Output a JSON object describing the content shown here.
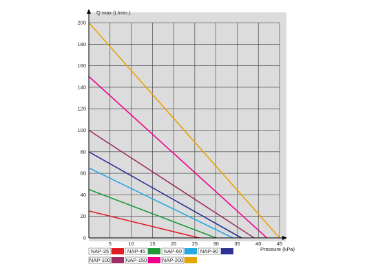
{
  "chart_data": {
    "type": "line",
    "title": "",
    "xlabel": "Pressure (kPa)",
    "ylabel": "Q max (L/min.)",
    "xlim": [
      0,
      45
    ],
    "ylim": [
      0,
      200
    ],
    "x_ticks": [
      5,
      10,
      15,
      20,
      25,
      30,
      35,
      40,
      45
    ],
    "y_ticks": [
      0,
      20,
      40,
      60,
      80,
      100,
      120,
      140,
      160,
      180,
      200
    ],
    "grid": true,
    "legend_position": "bottom",
    "series": [
      {
        "name": "NAP-35",
        "color": "#e01b24",
        "points": [
          [
            0,
            25
          ],
          [
            26,
            0
          ]
        ]
      },
      {
        "name": "NAP-45",
        "color": "#1f9a3a",
        "points": [
          [
            0,
            45
          ],
          [
            30,
            0
          ]
        ]
      },
      {
        "name": "NAP-60",
        "color": "#27a9e1",
        "points": [
          [
            0,
            65
          ],
          [
            34,
            0
          ]
        ]
      },
      {
        "name": "NAP-80",
        "color": "#2e3192",
        "points": [
          [
            0,
            80
          ],
          [
            36,
            0
          ]
        ]
      },
      {
        "name": "NAP-100",
        "color": "#9b2f63",
        "points": [
          [
            0,
            100
          ],
          [
            39,
            0
          ]
        ]
      },
      {
        "name": "NAP-150",
        "color": "#ec008c",
        "points": [
          [
            0,
            150
          ],
          [
            42,
            0
          ]
        ]
      },
      {
        "name": "NAP-200",
        "color": "#e8a400",
        "points": [
          [
            0,
            200
          ],
          [
            45,
            0
          ]
        ]
      }
    ]
  }
}
